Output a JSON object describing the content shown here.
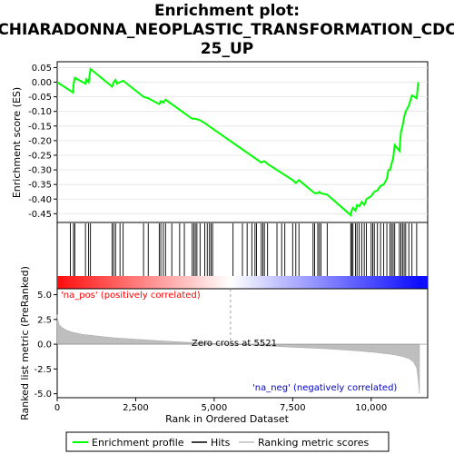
{
  "chart_data": {
    "type": "line",
    "title_lines": [
      "Enrichment plot:",
      "CHIARADONNA_NEOPLASTIC_TRANSFORMATION_CDC",
      "25_UP"
    ],
    "top_panel": {
      "ylabel": "Enrichment score (ES)",
      "ylim": [
        -0.48,
        0.07
      ],
      "yticks": [
        "0.05",
        "0.00",
        "-0.05",
        "-0.10",
        "-0.15",
        "-0.20",
        "-0.25",
        "-0.30",
        "-0.35",
        "-0.40",
        "-0.45"
      ],
      "ytick_values": [
        0.05,
        0.0,
        -0.05,
        -0.1,
        -0.15,
        -0.2,
        -0.25,
        -0.3,
        -0.35,
        -0.4,
        -0.45
      ],
      "series": [
        {
          "name": "Enrichment profile",
          "color": "#00ff00",
          "x": [
            0,
            500,
            520,
            560,
            900,
            930,
            1000,
            1060,
            1750,
            1800,
            1860,
            1900,
            2100,
            2750,
            2900,
            3250,
            3300,
            3380,
            3450,
            4300,
            4400,
            4550,
            4700,
            4900,
            6500,
            6600,
            6700,
            7500,
            7600,
            7700,
            8200,
            8300,
            8350,
            8400,
            8600,
            9350,
            9380,
            9420,
            9500,
            9550,
            9620,
            9700,
            9780,
            9850,
            10000,
            10100,
            10200,
            10300,
            10400,
            10500,
            10550,
            10600,
            10650,
            10700,
            10750,
            10900,
            10950,
            11000,
            11050,
            11100,
            11200,
            11300,
            11450,
            11500
          ],
          "y": [
            0.0,
            -0.035,
            -0.008,
            0.015,
            -0.005,
            0.01,
            0.0,
            0.045,
            -0.015,
            0.0,
            0.008,
            -0.005,
            0.005,
            -0.05,
            -0.055,
            -0.075,
            -0.065,
            -0.07,
            -0.06,
            -0.125,
            -0.125,
            -0.13,
            -0.14,
            -0.155,
            -0.275,
            -0.27,
            -0.28,
            -0.335,
            -0.345,
            -0.335,
            -0.38,
            -0.38,
            -0.375,
            -0.38,
            -0.385,
            -0.455,
            -0.44,
            -0.43,
            -0.44,
            -0.42,
            -0.425,
            -0.41,
            -0.42,
            -0.4,
            -0.39,
            -0.375,
            -0.37,
            -0.355,
            -0.35,
            -0.33,
            -0.3,
            -0.3,
            -0.28,
            -0.26,
            -0.215,
            -0.235,
            -0.17,
            -0.15,
            -0.12,
            -0.1,
            -0.08,
            -0.045,
            -0.055,
            0.0
          ]
        }
      ]
    },
    "hits_panel": {
      "series_name": "Hits",
      "hit_positions": [
        420,
        520,
        560,
        900,
        1000,
        1060,
        1750,
        1800,
        1860,
        2000,
        2100,
        2750,
        2900,
        3250,
        3300,
        3380,
        3450,
        3650,
        3900,
        4050,
        4300,
        4350,
        4400,
        4450,
        4550,
        4700,
        4780,
        4850,
        4900,
        4950,
        5600,
        5900,
        6050,
        6200,
        6300,
        6350,
        6500,
        6550,
        6600,
        6700,
        7000,
        7150,
        7250,
        7500,
        7600,
        7700,
        8150,
        8200,
        8300,
        8350,
        8400,
        8600,
        9350,
        9380,
        9420,
        9500,
        9550,
        9620,
        9700,
        9780,
        9850,
        10000,
        10050,
        10100,
        10200,
        10300,
        10400,
        10500,
        10600,
        10650,
        10700,
        10750,
        10900,
        10950,
        11000,
        11050,
        11100,
        11200,
        11300,
        11450
      ],
      "color_scale": [
        "#ff0000",
        "#ffffff",
        "#0000ff"
      ]
    },
    "bottom_panel": {
      "ylabel": "Ranked list metric (PreRanked)",
      "ylim": [
        -5.4,
        5.6
      ],
      "yticks": [
        "5.0",
        "2.5",
        "0.0",
        "-2.5",
        "-5.0"
      ],
      "ytick_values": [
        5.0,
        2.5,
        0.0,
        -2.5,
        -5.0
      ],
      "series_name": "Ranking metric scores",
      "profile_x": [
        0,
        20,
        60,
        150,
        300,
        500,
        800,
        1200,
        1800,
        2500,
        3500,
        4500,
        5521,
        6500,
        7500,
        8500,
        9500,
        10200,
        10700,
        11000,
        11200,
        11350,
        11450,
        11500,
        11540
      ],
      "profile_y": [
        3.0,
        2.5,
        2.0,
        1.7,
        1.4,
        1.2,
        1.0,
        0.85,
        0.65,
        0.5,
        0.3,
        0.15,
        0.0,
        -0.15,
        -0.3,
        -0.45,
        -0.65,
        -0.85,
        -1.05,
        -1.25,
        -1.45,
        -1.8,
        -2.4,
        -3.6,
        -5.0
      ],
      "annotations": {
        "pos": "'na_pos' (positively correlated)",
        "neg": "'na_neg' (negatively correlated)",
        "zero": "Zero cross at 5521"
      },
      "zero_cross": 5521
    },
    "x_axis": {
      "label": "Rank in Ordered Dataset",
      "xlim": [
        0,
        11800
      ],
      "xticks": [
        "0",
        "2,500",
        "5,000",
        "7,500",
        "10,000"
      ],
      "xtick_values": [
        0,
        2500,
        5000,
        7500,
        10000
      ]
    },
    "legend": {
      "items": [
        "Enrichment profile",
        "Hits",
        "Ranking metric scores"
      ],
      "colors": [
        "#00ff00",
        "#000000",
        "#bebebe"
      ]
    },
    "colors": {
      "profile": "#00ff00",
      "pos_label": "#ff0000",
      "neg_label": "#0000cd",
      "metric_fill": "#bebebe"
    }
  }
}
